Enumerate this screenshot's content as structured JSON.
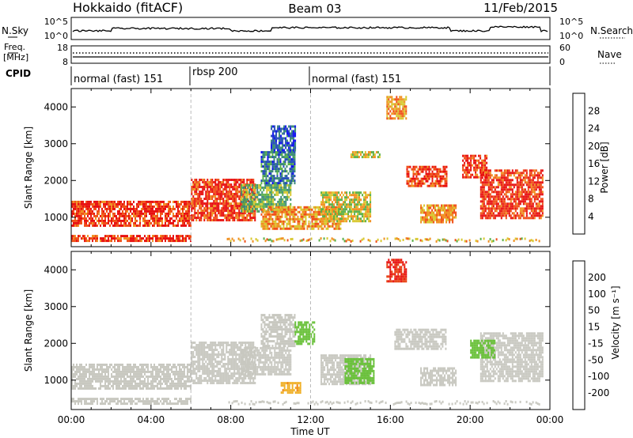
{
  "header": {
    "station": "Hokkaido (fitACF)",
    "beam": "Beam 03",
    "date": "11/Feb/2015"
  },
  "top_panels": {
    "nsky_label": "N.Sky",
    "nsearch_label": "N.Search",
    "noise_ticks": [
      "10^5",
      "10^0"
    ],
    "freq_label": "Freq.",
    "freq_unit": "[MHz]",
    "freq_ticks": [
      "18",
      "8"
    ],
    "nave_label": "Nave",
    "nave_ticks": [
      "60",
      "0"
    ],
    "cpid_label": "CPID",
    "cpid_segments": [
      {
        "label": "normal (fast) 151",
        "start_hour": 0,
        "end_hour": 6
      },
      {
        "label": "rbsp 200",
        "start_hour": 6,
        "end_hour": 12
      },
      {
        "label": "normal (fast) 151",
        "start_hour": 12,
        "end_hour": 24
      }
    ]
  },
  "chart_data": [
    {
      "type": "heatmap",
      "quantity": "power",
      "xlabel": "Time UT",
      "ylabel": "Slant Range [km]",
      "xlim": [
        0,
        24
      ],
      "ylim": [
        200,
        4500
      ],
      "xticks": [
        "00:00",
        "04:00",
        "08:00",
        "12:00",
        "16:00",
        "20:00",
        "00:00"
      ],
      "yticks": [
        1000,
        2000,
        3000,
        4000
      ],
      "colorbar": {
        "label": "Power [dB]",
        "ticks": [
          4,
          8,
          12,
          16,
          20,
          24,
          28
        ],
        "colors": [
          "#1010f0",
          "#2850b8",
          "#3a8a78",
          "#5ab048",
          "#d8c830",
          "#f09020",
          "#f05018",
          "#e81010"
        ]
      },
      "regions": [
        {
          "t": [
            0,
            6
          ],
          "r": [
            800,
            1450
          ],
          "value": 28
        },
        {
          "t": [
            0,
            6
          ],
          "r": [
            380,
            520
          ],
          "value": 28
        },
        {
          "t": [
            6,
            9.2
          ],
          "r": [
            900,
            2050
          ],
          "value": 28
        },
        {
          "t": [
            8.5,
            11
          ],
          "r": [
            1150,
            1900
          ],
          "value": 14
        },
        {
          "t": [
            9.5,
            11.2
          ],
          "r": [
            1950,
            2800
          ],
          "value": 9
        },
        {
          "t": [
            10,
            11.2
          ],
          "r": [
            2800,
            3500
          ],
          "value": 6
        },
        {
          "t": [
            9.5,
            13.5
          ],
          "r": [
            700,
            1300
          ],
          "value": 22
        },
        {
          "t": [
            12.5,
            15
          ],
          "r": [
            900,
            1700
          ],
          "value": 18
        },
        {
          "t": [
            14,
            15.5
          ],
          "r": [
            2650,
            2800
          ],
          "value": 18
        },
        {
          "t": [
            16.8,
            18.8
          ],
          "r": [
            1850,
            2400
          ],
          "value": 28
        },
        {
          "t": [
            15.8,
            16.8
          ],
          "r": [
            3700,
            4300
          ],
          "value": 22
        },
        {
          "t": [
            17.5,
            19.3
          ],
          "r": [
            850,
            1350
          ],
          "value": 22
        },
        {
          "t": [
            20.5,
            23.6
          ],
          "r": [
            950,
            2300
          ],
          "value": 28
        },
        {
          "t": [
            19.6,
            20.8
          ],
          "r": [
            2100,
            2700
          ],
          "value": 28
        }
      ]
    },
    {
      "type": "heatmap",
      "quantity": "velocity",
      "xlabel": "Time UT",
      "ylabel": "Slant Range [km]",
      "xlim": [
        0,
        24
      ],
      "ylim": [
        200,
        4500
      ],
      "xticks": [
        "00:00",
        "04:00",
        "08:00",
        "12:00",
        "16:00",
        "20:00",
        "00:00"
      ],
      "yticks": [
        1000,
        2000,
        3000,
        4000
      ],
      "colorbar": {
        "label": "Velocity [m s⁻¹]",
        "ticks": [
          200,
          100,
          50,
          15,
          -15,
          -50,
          -100,
          -200
        ],
        "colors": [
          "#1030c0",
          "#2870a0",
          "#3a8a50",
          "#68c038",
          "#c8c8c0",
          "#f0b028",
          "#f08010",
          "#e84010",
          "#e81010"
        ]
      },
      "regions": [
        {
          "t": [
            0,
            6
          ],
          "r": [
            800,
            1450
          ],
          "value": 0
        },
        {
          "t": [
            0,
            6
          ],
          "r": [
            380,
            520
          ],
          "value": 0
        },
        {
          "t": [
            6,
            9.2
          ],
          "r": [
            900,
            2050
          ],
          "value": 0
        },
        {
          "t": [
            8.5,
            11
          ],
          "r": [
            1150,
            1900
          ],
          "value": 0
        },
        {
          "t": [
            9.5,
            11.2
          ],
          "r": [
            1950,
            2800
          ],
          "value": 0
        },
        {
          "t": [
            11.2,
            12.2
          ],
          "r": [
            2000,
            2600
          ],
          "value": 30
        },
        {
          "t": [
            10.5,
            11.5
          ],
          "r": [
            650,
            950
          ],
          "value": -40
        },
        {
          "t": [
            12.5,
            15
          ],
          "r": [
            900,
            1700
          ],
          "value": 0
        },
        {
          "t": [
            13.7,
            15.2
          ],
          "r": [
            900,
            1600
          ],
          "value": 30
        },
        {
          "t": [
            16.2,
            18.8
          ],
          "r": [
            1850,
            2400
          ],
          "value": 0
        },
        {
          "t": [
            15.8,
            16.8
          ],
          "r": [
            3700,
            4300
          ],
          "value": -200
        },
        {
          "t": [
            17.5,
            19.3
          ],
          "r": [
            850,
            1350
          ],
          "value": 0
        },
        {
          "t": [
            20.5,
            23.6
          ],
          "r": [
            950,
            2300
          ],
          "value": 0
        },
        {
          "t": [
            20,
            21.2
          ],
          "r": [
            1600,
            2100
          ],
          "value": 30
        }
      ]
    }
  ]
}
